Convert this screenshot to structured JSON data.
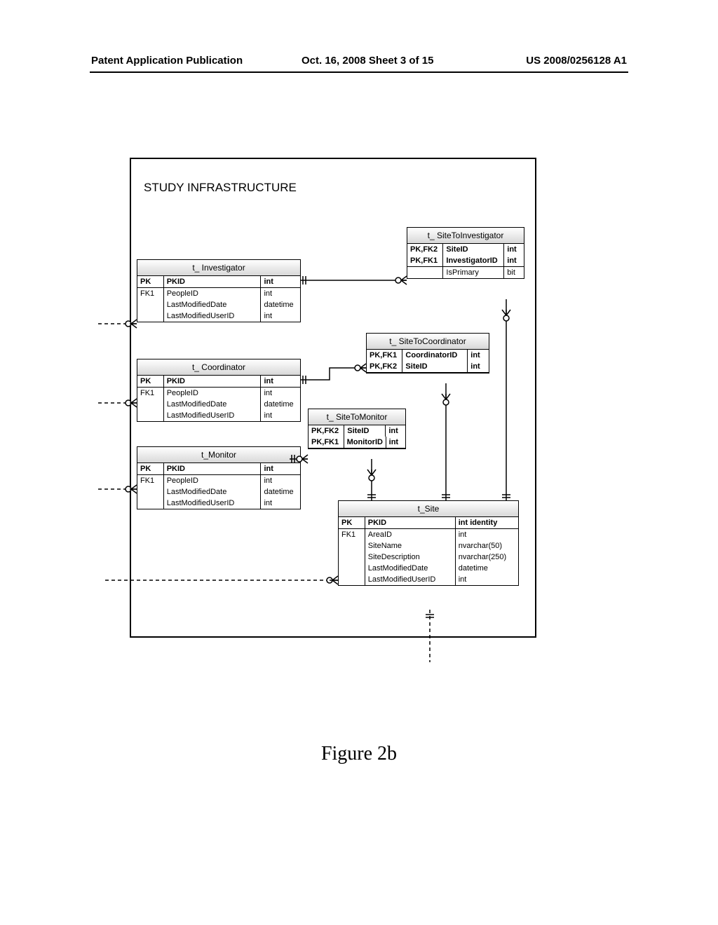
{
  "header": {
    "left": "Patent Application Publication",
    "center": "Oct. 16, 2008  Sheet 3 of 15",
    "right": "US 2008/0256128 A1"
  },
  "title": "STUDY INFRASTRUCTURE",
  "figure_caption": "Figure 2b",
  "entities": {
    "investigator": {
      "title": "t_ Investigator",
      "cols_w": [
        38,
        140,
        56
      ],
      "header_row": [
        "PK",
        "PKID",
        "int"
      ],
      "rows": [
        [
          "FK1",
          "PeopleID",
          "int"
        ],
        [
          "",
          "LastModifiedDate",
          "datetime"
        ],
        [
          "",
          "LastModifiedUserID",
          "int"
        ]
      ]
    },
    "coordinator": {
      "title": "t_ Coordinator",
      "cols_w": [
        38,
        140,
        56
      ],
      "header_row": [
        "PK",
        "PKID",
        "int"
      ],
      "rows": [
        [
          "FK1",
          "PeopleID",
          "int"
        ],
        [
          "",
          "LastModifiedDate",
          "datetime"
        ],
        [
          "",
          "LastModifiedUserID",
          "int"
        ]
      ]
    },
    "monitor": {
      "title": "t_Monitor",
      "cols_w": [
        38,
        140,
        56
      ],
      "header_row": [
        "PK",
        "PKID",
        "int"
      ],
      "rows": [
        [
          "FK1",
          "PeopleID",
          "int"
        ],
        [
          "",
          "LastModifiedDate",
          "datetime"
        ],
        [
          "",
          "LastModifiedUserID",
          "int"
        ]
      ]
    },
    "site_to_investigator": {
      "title": "t_ SiteToInvestigator",
      "cols_w": [
        52,
        88,
        28
      ],
      "header_rows": [
        [
          "PK,FK2",
          "SiteID",
          "int"
        ],
        [
          "PK,FK1",
          "InvestigatorID",
          "int"
        ]
      ],
      "rows": [
        [
          "",
          "IsPrimary",
          "bit"
        ]
      ]
    },
    "site_to_coordinator": {
      "title": "t_ SiteToCoordinator",
      "cols_w": [
        52,
        94,
        30
      ],
      "header_rows": [
        [
          "PK,FK1",
          "CoordinatorID",
          "int"
        ],
        [
          "PK,FK2",
          "SiteID",
          "int"
        ]
      ]
    },
    "site_to_monitor": {
      "title": "t_ SiteToMonitor",
      "cols_w": [
        52,
        60,
        28
      ],
      "header_rows": [
        [
          "PK,FK2",
          "SiteID",
          "int"
        ],
        [
          "PK,FK1",
          "MonitorID",
          "int"
        ]
      ]
    },
    "site": {
      "title": "t_Site",
      "cols_w": [
        38,
        130,
        90
      ],
      "header_row": [
        "PK",
        "PKID",
        "int identity"
      ],
      "rows": [
        [
          "FK1",
          "AreaID",
          "int"
        ],
        [
          "",
          "SiteName",
          "nvarchar(50)"
        ],
        [
          "",
          "SiteDescription",
          "nvarchar(250)"
        ],
        [
          "",
          "LastModifiedDate",
          "datetime"
        ],
        [
          "",
          "LastModifiedUserID",
          "int"
        ]
      ]
    }
  }
}
